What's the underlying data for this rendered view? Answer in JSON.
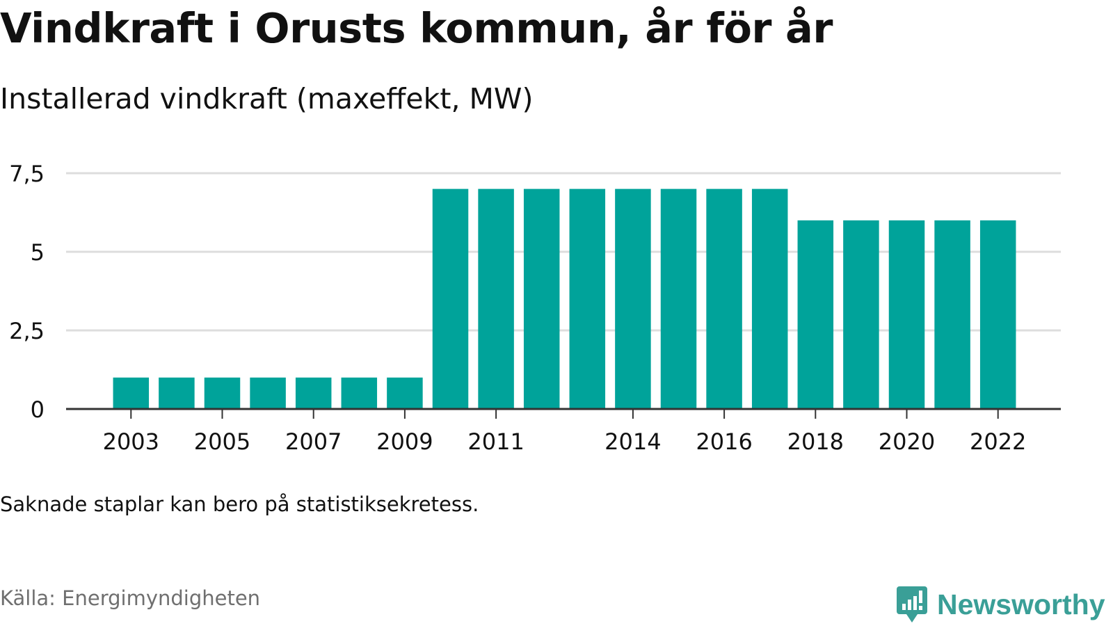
{
  "title": "Vindkraft i Orusts kommun, år för år",
  "subtitle": "Installerad vindkraft (maxeffekt, MW)",
  "note": "Saknade staplar kan bero på statistiksekretess.",
  "source": "Källa: Energimyndigheten",
  "brand": {
    "name": "Newsworthy",
    "icon": "newsworthy-logo-icon",
    "color": "#3a9f97"
  },
  "colors": {
    "bar": "#00a39a",
    "grid": "#dddddd",
    "axis": "#333333",
    "text": "#111111"
  },
  "chart_data": {
    "type": "bar",
    "categories": [
      "2003",
      "2004",
      "2005",
      "2006",
      "2007",
      "2008",
      "2009",
      "2010",
      "2011",
      "2012",
      "2013",
      "2014",
      "2015",
      "2016",
      "2017",
      "2018",
      "2019",
      "2020",
      "2021",
      "2022"
    ],
    "values": [
      1,
      1,
      1,
      1,
      1,
      1,
      1,
      7,
      7,
      7,
      7,
      7,
      7,
      7,
      7,
      6,
      6,
      6,
      6,
      6
    ],
    "x_tick_labels": [
      "2003",
      "2005",
      "2007",
      "2009",
      "2011",
      "2014",
      "2016",
      "2018",
      "2020",
      "2022"
    ],
    "y_ticks": [
      0,
      2.5,
      5,
      7.5
    ],
    "y_tick_labels": [
      "0",
      "2,5",
      "5",
      "7,5"
    ],
    "ylim": [
      0,
      7.5
    ],
    "title": "Vindkraft i Orusts kommun, år för år",
    "ylabel": "",
    "xlabel": "",
    "grid": true,
    "legend": "none"
  }
}
